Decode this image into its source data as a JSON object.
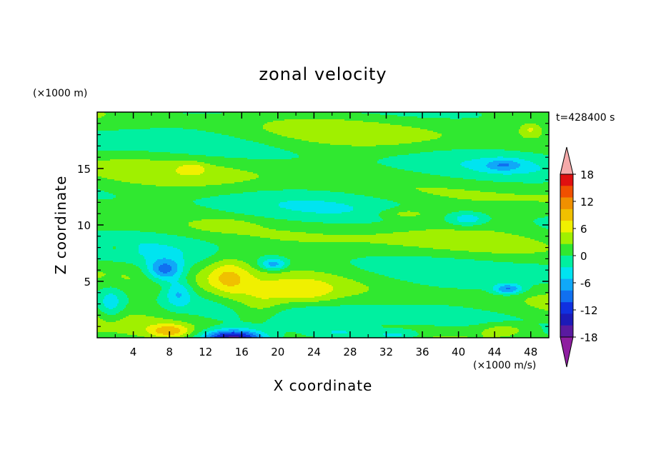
{
  "chart_data": {
    "type": "heatmap",
    "title": "zonal velocity",
    "xlabel": "X coordinate",
    "ylabel": "Z coordinate",
    "x_scale_note": "(×1000 m/s)",
    "y_scale_note": "(×1000 m)",
    "time_label": "t=428400 s",
    "xlim": [
      0,
      50
    ],
    "ylim": [
      0,
      20
    ],
    "x_ticks": [
      "4",
      "8",
      "12",
      "16",
      "20",
      "24",
      "28",
      "32",
      "36",
      "40",
      "44",
      "48"
    ],
    "y_ticks": [
      "5",
      "10",
      "15"
    ],
    "colorbar": {
      "ticks": [
        "18",
        "12",
        "6",
        "0",
        "-6",
        "-12",
        "-18"
      ],
      "levels": [
        -21,
        -18,
        -15,
        -12,
        -9,
        -6,
        -3,
        0,
        3,
        6,
        9,
        12,
        15,
        18,
        21
      ],
      "colors": [
        "#7a1fa2",
        "#5a1aa0",
        "#1c1ab8",
        "#1030e0",
        "#1070f0",
        "#10a8f8",
        "#00e4f0",
        "#00f0a0",
        "#30e830",
        "#a0f000",
        "#f0f000",
        "#f0c000",
        "#f09000",
        "#f05000",
        "#e01010",
        "#f0a0a0"
      ],
      "under_color": "#8e1ea0",
      "over_color": "#f5aaaa"
    },
    "features": [
      {
        "kind": "positive-jet",
        "x": [
          12,
          26
        ],
        "z": [
          1,
          7
        ],
        "max": 9
      },
      {
        "kind": "negative-core",
        "x": 14.5,
        "z": 0.3,
        "min": -15
      },
      {
        "kind": "negative-patch",
        "x": 7.5,
        "z": 6,
        "min": -9
      },
      {
        "kind": "negative-patch",
        "x": 19.5,
        "z": 6.5,
        "min": -6
      },
      {
        "kind": "negative-patch",
        "x": 45.5,
        "z": 4.3,
        "min": -9
      },
      {
        "kind": "positive-patch",
        "x": 7.5,
        "z": 0.8,
        "max": 9
      },
      {
        "kind": "positive-patch",
        "x": 45,
        "z": 0.8,
        "max": 6
      }
    ]
  }
}
